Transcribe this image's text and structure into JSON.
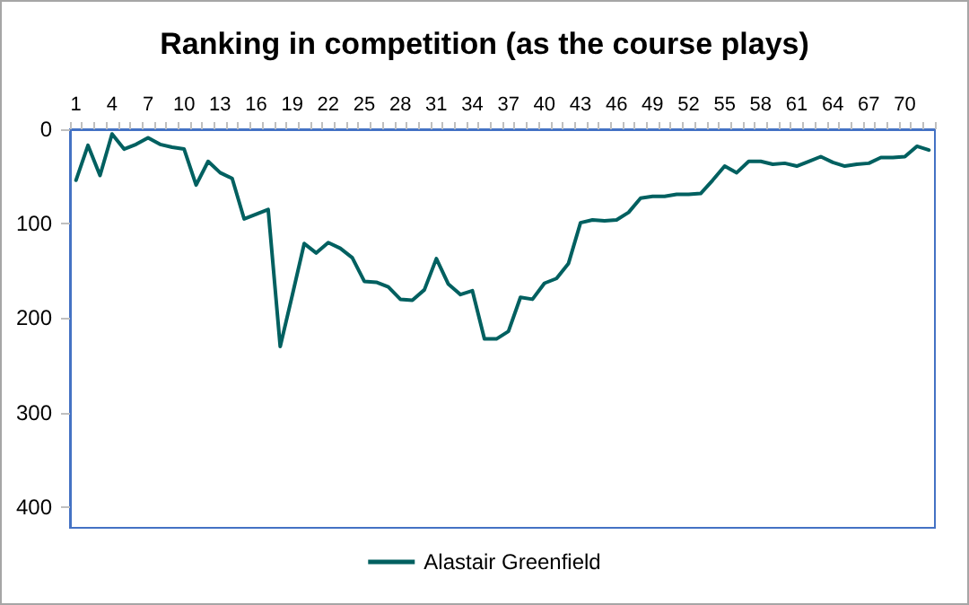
{
  "chart_data": {
    "type": "line",
    "title": "Ranking in competition (as the course plays)",
    "categories": [
      "1",
      null,
      null,
      "4",
      null,
      null,
      "7",
      null,
      null,
      "10",
      null,
      null,
      "13",
      null,
      null,
      "16",
      null,
      null,
      "19",
      null,
      null,
      "22",
      null,
      null,
      "25",
      null,
      null,
      "28",
      null,
      null,
      "31",
      null,
      null,
      "34",
      null,
      null,
      "37",
      null,
      null,
      "40",
      null,
      null,
      "43",
      null,
      null,
      "46",
      null,
      null,
      "49",
      null,
      null,
      "52",
      null,
      null,
      "55",
      null,
      null,
      "58",
      null,
      null,
      "61",
      null,
      null,
      "64",
      null,
      null,
      "67",
      null,
      null,
      "70",
      null,
      null
    ],
    "series": [
      {
        "name": "Alastair Greenfield",
        "color": "#006060",
        "values": [
          54,
          17,
          49,
          5,
          21,
          16,
          9,
          16,
          19,
          21,
          59,
          34,
          46,
          52,
          95,
          90,
          85,
          230,
          176,
          121,
          131,
          120,
          126,
          136,
          161,
          162,
          167,
          180,
          181,
          170,
          137,
          164,
          175,
          171,
          222,
          222,
          214,
          178,
          180,
          163,
          158,
          142,
          99,
          96,
          97,
          96,
          88,
          73,
          71,
          71,
          69,
          69,
          68,
          54,
          39,
          46,
          34,
          34,
          37,
          36,
          39,
          34,
          29,
          35,
          39,
          37,
          36,
          30,
          30,
          29,
          18,
          22
        ]
      }
    ],
    "ylim": [
      422,
      0
    ],
    "yticks": [
      0,
      100,
      200,
      300,
      400
    ],
    "grid": false,
    "legend": "bottom",
    "marker": "none",
    "line_style": "solid"
  }
}
